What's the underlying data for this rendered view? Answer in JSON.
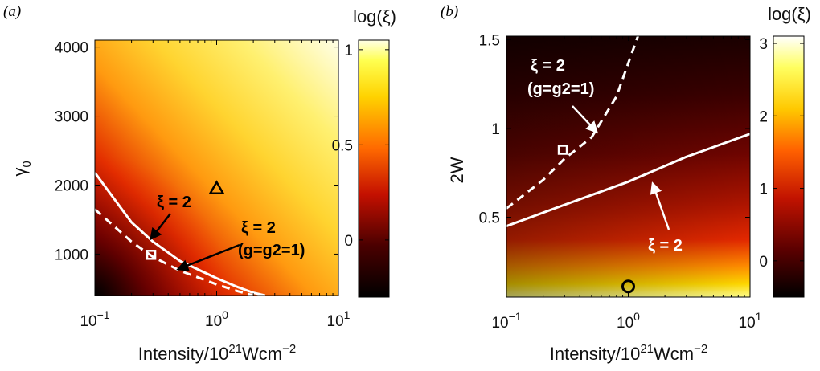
{
  "chart_data": [
    {
      "panel": "(a)",
      "type": "heatmap",
      "xlabel": "Intensity/10^21Wcm^-2",
      "ylabel": "γ0",
      "xscale": "log",
      "xlim": [
        0.1,
        10
      ],
      "ylim": [
        400,
        4100
      ],
      "x_ticks": [
        0.1,
        1,
        10
      ],
      "x_tick_labels": [
        {
          "base": "10",
          "exp": "−1"
        },
        {
          "base": "10",
          "exp": "0"
        },
        {
          "base": "10",
          "exp": "1"
        }
      ],
      "y_ticks": [
        1000,
        2000,
        3000,
        4000
      ],
      "y_tick_labels": [
        "1000",
        "2000",
        "3000",
        "4000"
      ],
      "colorbar": {
        "title": "log(ξ)",
        "range": [
          -0.3,
          1.05
        ],
        "ticks": [
          0,
          0.5,
          1
        ],
        "tick_labels": [
          "0",
          "0.5",
          "1"
        ]
      },
      "contours": [
        {
          "label": "ξ = 2",
          "style": "solid",
          "color": "#ffffff",
          "points": [
            [
              0.1,
              2180
            ],
            [
              0.2,
              1460
            ],
            [
              0.3,
              1180
            ],
            [
              0.5,
              900
            ],
            [
              1.0,
              650
            ],
            [
              1.5,
              520
            ],
            [
              2.0,
              440
            ],
            [
              2.5,
              400
            ]
          ]
        },
        {
          "label": "ξ = 2 (g=g2=1)",
          "style": "dashed",
          "color": "#ffffff",
          "points": [
            [
              0.1,
              1650
            ],
            [
              0.2,
              1180
            ],
            [
              0.3,
              960
            ],
            [
              0.5,
              760
            ],
            [
              1.0,
              560
            ],
            [
              1.5,
              460
            ],
            [
              2.0,
              400
            ]
          ]
        }
      ],
      "markers": [
        {
          "shape": "triangle",
          "x": 1.0,
          "y": 1950,
          "color": "#000000"
        },
        {
          "shape": "square",
          "x": 0.29,
          "y": 990,
          "color": "#ffffff"
        }
      ],
      "annotations": [
        {
          "text": "ξ = 2",
          "color": "#000000"
        },
        {
          "lines": [
            "ξ = 2",
            "(g=g2=1)"
          ],
          "color": "#000000"
        }
      ]
    },
    {
      "panel": "(b)",
      "type": "heatmap",
      "xlabel": "Intensity/10^21Wcm^-2",
      "ylabel": "2W",
      "xscale": "log",
      "xlim": [
        0.1,
        10
      ],
      "ylim": [
        0.05,
        1.52
      ],
      "x_ticks": [
        0.1,
        1,
        10
      ],
      "x_tick_labels": [
        {
          "base": "10",
          "exp": "−1"
        },
        {
          "base": "10",
          "exp": "0"
        },
        {
          "base": "10",
          "exp": "1"
        }
      ],
      "y_ticks": [
        0.5,
        1,
        1.5
      ],
      "y_tick_labels": [
        "0.5",
        "1",
        "1.5"
      ],
      "colorbar": {
        "title": "log(ξ)",
        "range": [
          -0.5,
          3.1
        ],
        "ticks": [
          0,
          1,
          2,
          3
        ],
        "tick_labels": [
          "0",
          "1",
          "2",
          "3"
        ]
      },
      "contours": [
        {
          "label": "ξ = 2",
          "style": "solid",
          "color": "#ffffff",
          "points": [
            [
              0.1,
              0.45
            ],
            [
              0.3,
              0.57
            ],
            [
              1.0,
              0.7
            ],
            [
              3.0,
              0.84
            ],
            [
              10,
              0.97
            ]
          ]
        },
        {
          "label": "ξ = 2 (g=g2=1)",
          "style": "dashed",
          "color": "#ffffff",
          "points": [
            [
              0.1,
              0.55
            ],
            [
              0.2,
              0.71
            ],
            [
              0.3,
              0.83
            ],
            [
              0.5,
              0.95
            ],
            [
              0.8,
              1.18
            ],
            [
              1.2,
              1.52
            ]
          ]
        }
      ],
      "markers": [
        {
          "shape": "square",
          "x": 0.29,
          "y": 0.88,
          "color": "#ffffff"
        },
        {
          "shape": "circle",
          "x": 1.0,
          "y": 0.11,
          "color": "#000000"
        }
      ],
      "annotations": [
        {
          "lines": [
            "ξ = 2",
            "(g=g2=1)"
          ],
          "color": "#ffffff"
        },
        {
          "text": "ξ = 2",
          "color": "#ffffff"
        }
      ]
    }
  ]
}
